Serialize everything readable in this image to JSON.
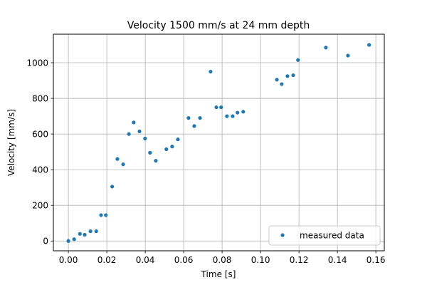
{
  "chart_data": {
    "type": "scatter",
    "title": "Velocity 1500 mm/s at 24 mm depth",
    "xlabel": "Time [s]",
    "ylabel": "Velocity [mm/s]",
    "xlim": [
      -0.0078,
      0.1644
    ],
    "ylim": [
      -55,
      1160
    ],
    "xticks": [
      0.0,
      0.02,
      0.04,
      0.06,
      0.08,
      0.1,
      0.12,
      0.14,
      0.16
    ],
    "xtick_labels": [
      "0.00",
      "0.02",
      "0.04",
      "0.06",
      "0.08",
      "0.10",
      "0.12",
      "0.14",
      "0.16"
    ],
    "yticks": [
      0,
      200,
      400,
      600,
      800,
      1000
    ],
    "ytick_labels": [
      "0",
      "200",
      "400",
      "600",
      "800",
      "1000"
    ],
    "grid": true,
    "legend": "lower right",
    "series": [
      {
        "name": "measured data",
        "color": "#1f77b4",
        "points": [
          [
            0.0,
            0
          ],
          [
            0.003,
            10
          ],
          [
            0.006,
            40
          ],
          [
            0.0085,
            35
          ],
          [
            0.0115,
            55
          ],
          [
            0.0145,
            55
          ],
          [
            0.017,
            145
          ],
          [
            0.0195,
            145
          ],
          [
            0.0228,
            305
          ],
          [
            0.0255,
            460
          ],
          [
            0.0285,
            430
          ],
          [
            0.0315,
            600
          ],
          [
            0.034,
            665
          ],
          [
            0.037,
            615
          ],
          [
            0.0399,
            575
          ],
          [
            0.0425,
            495
          ],
          [
            0.0455,
            450
          ],
          [
            0.051,
            515
          ],
          [
            0.054,
            530
          ],
          [
            0.057,
            570
          ],
          [
            0.0625,
            690
          ],
          [
            0.0655,
            645
          ],
          [
            0.0685,
            690
          ],
          [
            0.074,
            950
          ],
          [
            0.077,
            750
          ],
          [
            0.0795,
            750
          ],
          [
            0.0825,
            700
          ],
          [
            0.0855,
            700
          ],
          [
            0.088,
            720
          ],
          [
            0.091,
            725
          ],
          [
            0.1085,
            905
          ],
          [
            0.111,
            880
          ],
          [
            0.114,
            925
          ],
          [
            0.117,
            930
          ],
          [
            0.1195,
            1015
          ],
          [
            0.134,
            1085
          ],
          [
            0.1455,
            1040
          ],
          [
            0.1565,
            1100
          ]
        ]
      }
    ]
  }
}
